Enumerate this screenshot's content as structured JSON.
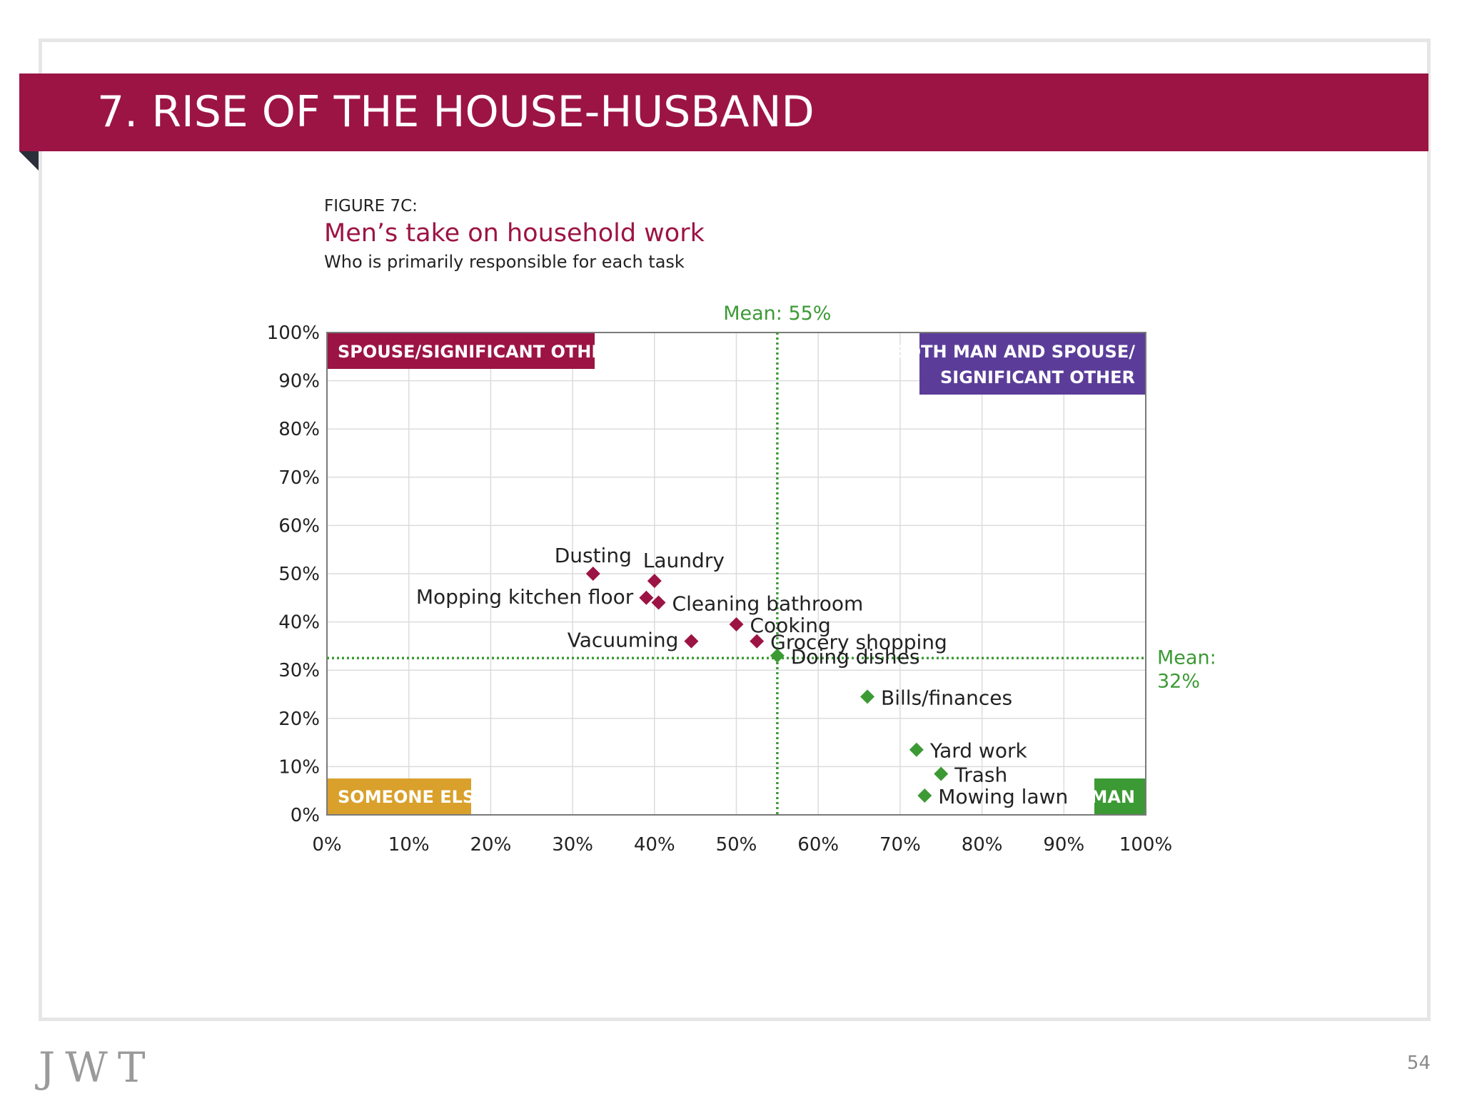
{
  "page": {
    "banner_title": "7. RISE OF THE HOUSE-HUSBAND",
    "figure_label": "FIGURE 7C:",
    "figure_title": "Men’s take on household work",
    "figure_subtitle": "Who is primarily responsible for each task",
    "logo": "JWT",
    "page_number": "54",
    "colors": {
      "banner": "#9c1444",
      "spouse": "#9c1444",
      "both": "#5b3d99",
      "someone_else": "#d9a02b",
      "man": "#3c9a35",
      "mean_line": "#3c9a35"
    }
  },
  "chart_data": {
    "type": "scatter",
    "title": "Men’s take on household work",
    "subtitle": "Who is primarily responsible for each task",
    "xlim": [
      0,
      100
    ],
    "ylim": [
      0,
      100
    ],
    "x_ticks": [
      "0%",
      "10%",
      "20%",
      "30%",
      "40%",
      "50%",
      "60%",
      "70%",
      "80%",
      "90%",
      "100%"
    ],
    "y_ticks": [
      "0%",
      "10%",
      "20%",
      "30%",
      "40%",
      "50%",
      "60%",
      "70%",
      "80%",
      "90%",
      "100%"
    ],
    "grid": true,
    "mean_x": {
      "value": 55,
      "label": "Mean: 55%"
    },
    "mean_y": {
      "value": 32.5,
      "label_line1": "Mean:",
      "label_line2": "32%"
    },
    "quadrants": [
      {
        "id": "spouse",
        "label_lines": [
          "SPOUSE/SIGNIFICANT OTHER"
        ],
        "corner": "top-left",
        "color": "#9c1444"
      },
      {
        "id": "both",
        "label_lines": [
          "BOTH MAN AND SPOUSE/",
          "SIGNIFICANT OTHER"
        ],
        "corner": "top-right",
        "color": "#5b3d99"
      },
      {
        "id": "someone-else",
        "label_lines": [
          "SOMEONE ELSE"
        ],
        "corner": "bottom-left",
        "color": "#d9a02b"
      },
      {
        "id": "man",
        "label_lines": [
          "MAN"
        ],
        "corner": "bottom-right",
        "color": "#3c9a35"
      }
    ],
    "points": [
      {
        "label": "Dusting",
        "x": 32.5,
        "y": 50,
        "group": "spouse",
        "label_pos": "above"
      },
      {
        "label": "Laundry",
        "x": 40,
        "y": 48.5,
        "group": "spouse",
        "label_pos": "above-right"
      },
      {
        "label": "Mopping kitchen floor",
        "x": 39,
        "y": 45,
        "group": "spouse",
        "label_pos": "left"
      },
      {
        "label": "Cleaning bathroom",
        "x": 40.5,
        "y": 44,
        "group": "spouse",
        "label_pos": "right"
      },
      {
        "label": "Vacuuming",
        "x": 44.5,
        "y": 36,
        "group": "spouse",
        "label_pos": "left"
      },
      {
        "label": "Cooking",
        "x": 50,
        "y": 39.5,
        "group": "spouse",
        "label_pos": "right"
      },
      {
        "label": "Grocery shopping",
        "x": 52.5,
        "y": 36,
        "group": "spouse",
        "label_pos": "right"
      },
      {
        "label": "Doing dishes",
        "x": 55,
        "y": 33,
        "group": "man",
        "label_pos": "right"
      },
      {
        "label": "Bills/finances",
        "x": 66,
        "y": 24.5,
        "group": "man",
        "label_pos": "right"
      },
      {
        "label": "Yard work",
        "x": 72,
        "y": 13.5,
        "group": "man",
        "label_pos": "right"
      },
      {
        "label": "Trash",
        "x": 75,
        "y": 8.5,
        "group": "man",
        "label_pos": "right"
      },
      {
        "label": "Mowing lawn",
        "x": 73,
        "y": 4,
        "group": "man",
        "label_pos": "right"
      }
    ]
  }
}
